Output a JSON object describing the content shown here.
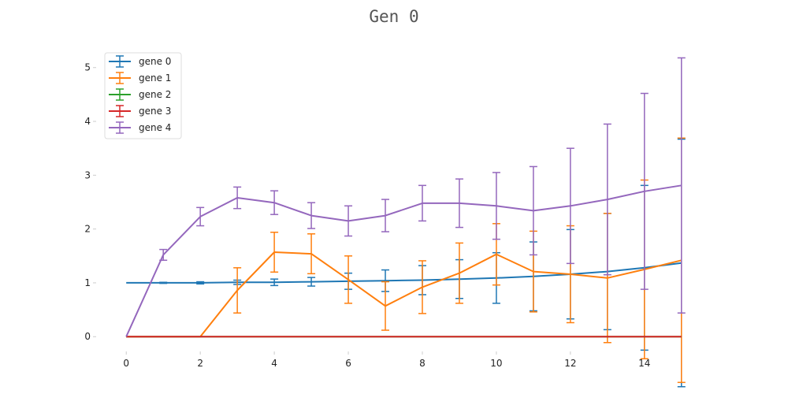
{
  "chart_data": {
    "type": "line",
    "title": "Gen 0",
    "xlabel": "",
    "ylabel": "",
    "xlim": [
      -0.75,
      15.75
    ],
    "ylim": [
      -0.26,
      5.45
    ],
    "xticks": [
      0,
      2,
      4,
      6,
      8,
      10,
      12,
      14
    ],
    "yticks": [
      0,
      1,
      2,
      3,
      4,
      5
    ],
    "grid": false,
    "legend_position": "top-left",
    "error_bars": true,
    "x": [
      0,
      1,
      2,
      3,
      4,
      5,
      6,
      7,
      8,
      9,
      10,
      11,
      12,
      13,
      14,
      15
    ],
    "series": [
      {
        "name": "gene 0",
        "color": "#1f77b4",
        "values": [
          1.0,
          1.0,
          1.0,
          1.01,
          1.01,
          1.02,
          1.03,
          1.04,
          1.05,
          1.07,
          1.09,
          1.12,
          1.16,
          1.21,
          1.28,
          1.37
        ],
        "errors": [
          0.0,
          0.01,
          0.02,
          0.04,
          0.06,
          0.08,
          0.15,
          0.2,
          0.27,
          0.36,
          0.47,
          0.64,
          0.83,
          1.08,
          1.53,
          2.3
        ]
      },
      {
        "name": "gene 1",
        "color": "#ff7f0e",
        "values": [
          0.0,
          0.0,
          0.0,
          0.86,
          1.57,
          1.54,
          1.06,
          0.57,
          0.92,
          1.18,
          1.53,
          1.21,
          1.16,
          1.09,
          1.25,
          1.42
        ],
        "errors": [
          0.0,
          0.0,
          0.0,
          0.42,
          0.37,
          0.37,
          0.44,
          0.45,
          0.49,
          0.56,
          0.57,
          0.75,
          0.9,
          1.2,
          1.66,
          2.27
        ]
      },
      {
        "name": "gene 2",
        "color": "#2ca02c",
        "values": [
          0,
          0,
          0,
          0,
          0,
          0,
          0,
          0,
          0,
          0,
          0,
          0,
          0,
          0,
          0,
          0
        ],
        "errors": [
          0,
          0,
          0,
          0,
          0,
          0,
          0,
          0,
          0,
          0,
          0,
          0,
          0,
          0,
          0,
          0
        ]
      },
      {
        "name": "gene 3",
        "color": "#d62728",
        "values": [
          0,
          0,
          0,
          0,
          0,
          0,
          0,
          0,
          0,
          0,
          0,
          0,
          0,
          0,
          0,
          0
        ],
        "errors": [
          0,
          0,
          0,
          0,
          0,
          0,
          0,
          0,
          0,
          0,
          0,
          0,
          0,
          0,
          0,
          0
        ]
      },
      {
        "name": "gene 4",
        "color": "#9467bd",
        "values": [
          0.0,
          1.52,
          2.23,
          2.58,
          2.49,
          2.25,
          2.15,
          2.25,
          2.48,
          2.48,
          2.43,
          2.34,
          2.43,
          2.55,
          2.7,
          2.81
        ],
        "errors": [
          0.0,
          0.1,
          0.17,
          0.2,
          0.22,
          0.24,
          0.28,
          0.3,
          0.33,
          0.45,
          0.62,
          0.82,
          1.07,
          1.4,
          1.82,
          2.37
        ]
      }
    ]
  }
}
